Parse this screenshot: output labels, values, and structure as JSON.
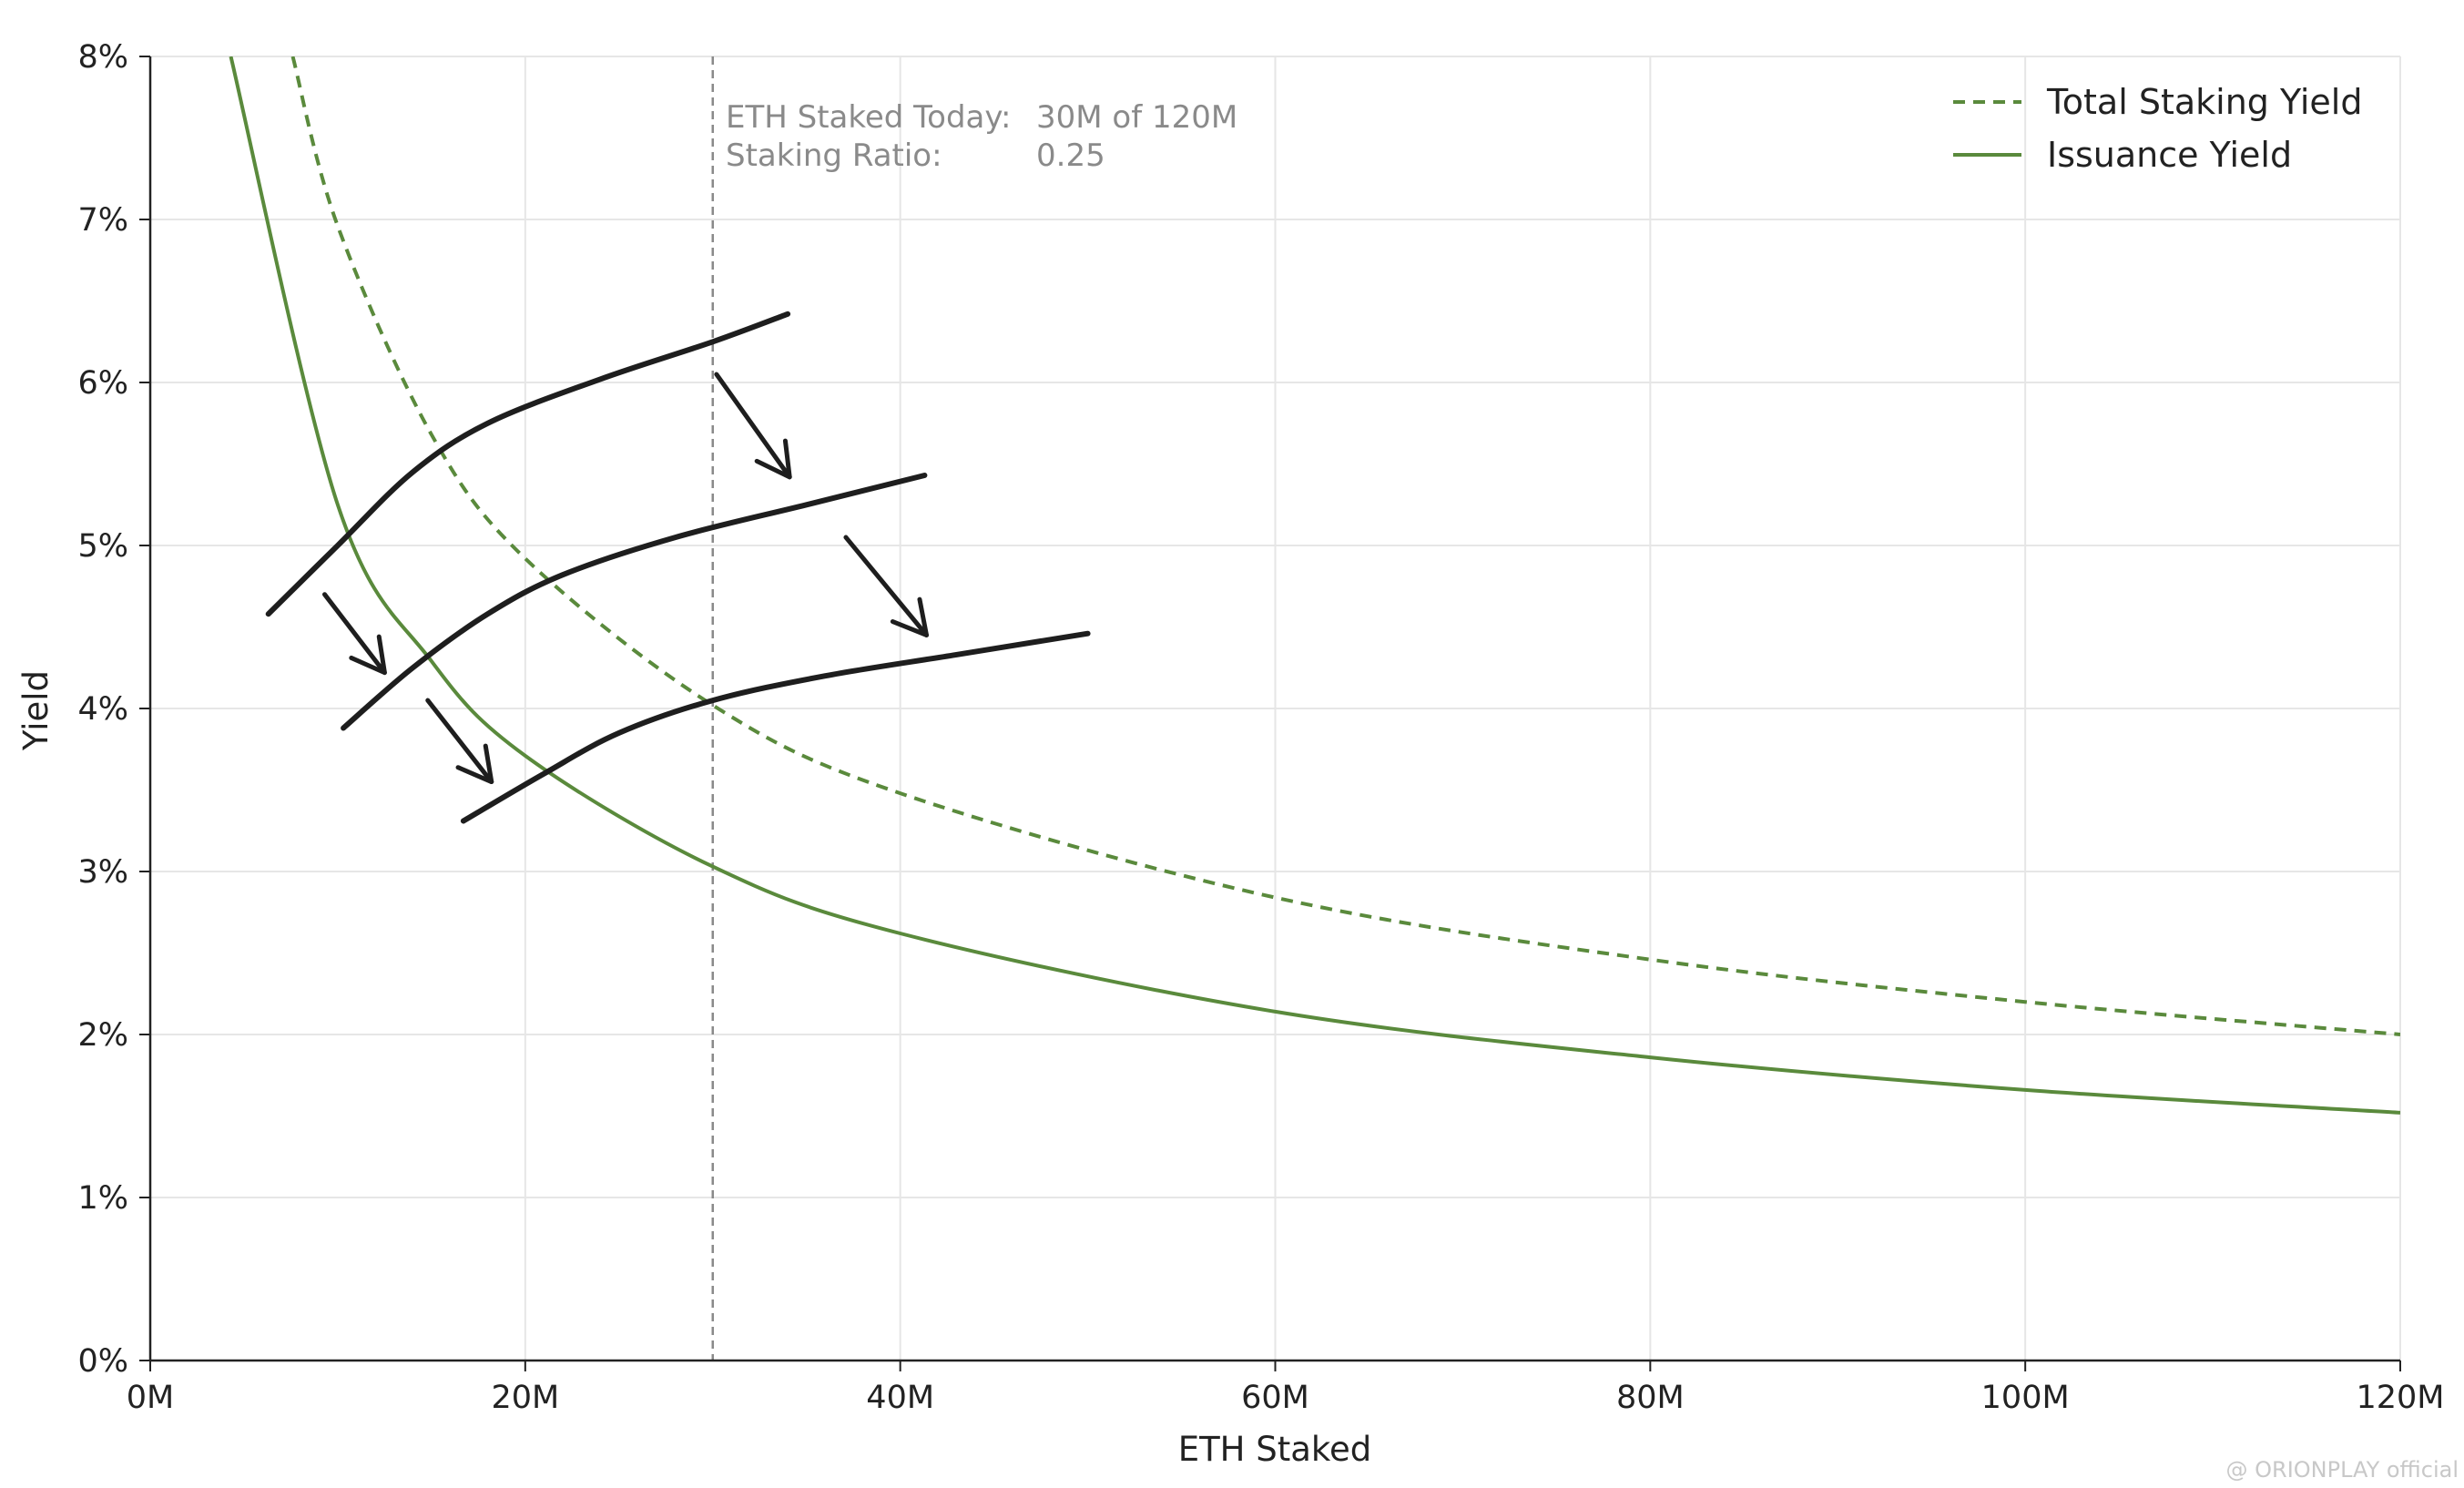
{
  "chart_data": {
    "type": "line",
    "xlabel": "ETH Staked",
    "ylabel": "Yield",
    "xlim": [
      0,
      120
    ],
    "ylim": [
      0,
      8
    ],
    "x_unit": "M ETH",
    "y_unit": "%",
    "x_ticks": [
      0,
      20,
      40,
      60,
      80,
      100,
      120
    ],
    "x_tick_labels": [
      "0M",
      "20M",
      "40M",
      "60M",
      "80M",
      "100M",
      "120M"
    ],
    "y_ticks": [
      0,
      1,
      2,
      3,
      4,
      5,
      6,
      7,
      8
    ],
    "y_tick_labels": [
      "0%",
      "1%",
      "2%",
      "3%",
      "4%",
      "5%",
      "6%",
      "7%",
      "8%"
    ],
    "grid": true,
    "legend_position": "top-right",
    "series": [
      {
        "name": "Total Staking Yield",
        "style": "dashed",
        "color": "#5a8a3c",
        "formula": "y = 22 / sqrt(x)",
        "points": [
          [
            7.6,
            8.0
          ],
          [
            10,
            6.96
          ],
          [
            15,
            5.68
          ],
          [
            20,
            4.92
          ],
          [
            30,
            4.02
          ],
          [
            40,
            3.48
          ],
          [
            60,
            2.84
          ],
          [
            80,
            2.46
          ],
          [
            100,
            2.2
          ],
          [
            120,
            2.0
          ]
        ]
      },
      {
        "name": "Issuance Yield",
        "style": "solid",
        "color": "#5a8a3c",
        "formula": "y = 16.6 / sqrt(x)",
        "points": [
          [
            4.3,
            8.0
          ],
          [
            10,
            5.25
          ],
          [
            15,
            4.29
          ],
          [
            20,
            3.71
          ],
          [
            30,
            3.03
          ],
          [
            40,
            2.62
          ],
          [
            60,
            2.14
          ],
          [
            80,
            1.86
          ],
          [
            100,
            1.66
          ],
          [
            120,
            1.52
          ]
        ]
      }
    ],
    "reference_line": {
      "x": 30,
      "style": "dashed",
      "color": "#8a8a8a"
    },
    "annotation": {
      "line1_label": "ETH Staked Today:",
      "line1_value": "30M of 120M",
      "line2_label": "Staking Ratio:",
      "line2_value": "0.25"
    },
    "hand_drawn_curves": [
      {
        "points": [
          [
            6.3,
            4.58
          ],
          [
            10,
            5.0
          ],
          [
            14,
            5.45
          ],
          [
            18,
            5.75
          ],
          [
            24,
            6.02
          ],
          [
            30,
            6.25
          ],
          [
            34,
            6.42
          ]
        ]
      },
      {
        "points": [
          [
            10.3,
            3.88
          ],
          [
            14,
            4.25
          ],
          [
            18,
            4.58
          ],
          [
            22,
            4.82
          ],
          [
            28,
            5.05
          ],
          [
            35,
            5.25
          ],
          [
            41.3,
            5.43
          ]
        ]
      },
      {
        "points": [
          [
            16.7,
            3.31
          ],
          [
            21,
            3.6
          ],
          [
            25,
            3.85
          ],
          [
            30,
            4.05
          ],
          [
            36,
            4.2
          ],
          [
            43,
            4.33
          ],
          [
            50,
            4.46
          ]
        ]
      }
    ],
    "arrows": [
      {
        "from": [
          9.3,
          4.7
        ],
        "to": [
          12.5,
          4.22
        ]
      },
      {
        "from": [
          14.8,
          4.05
        ],
        "to": [
          18.2,
          3.55
        ]
      },
      {
        "from": [
          30.2,
          6.05
        ],
        "to": [
          34.1,
          5.42
        ]
      },
      {
        "from": [
          37.1,
          5.05
        ],
        "to": [
          41.4,
          4.45
        ]
      }
    ]
  },
  "watermark": "@ ORIONPLAY official"
}
